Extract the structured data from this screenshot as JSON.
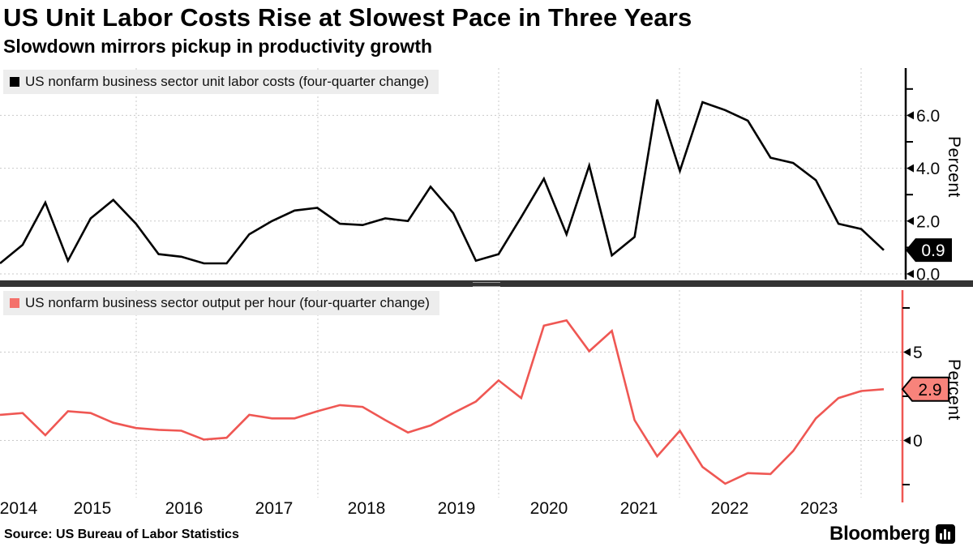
{
  "header": {
    "title": "US Unit Labor Costs Rise at Slowest Pace in Three Years",
    "subtitle": "Slowdown mirrors pickup in productivity growth"
  },
  "footer": {
    "source": "Source: US Bureau of Labor Statistics",
    "brand": "Bloomberg"
  },
  "x_axis": {
    "year_labels": [
      "2014",
      "2015",
      "2016",
      "2017",
      "2018",
      "2019",
      "2020",
      "2021",
      "2022",
      "2023"
    ]
  },
  "chart_data": [
    {
      "type": "line",
      "legend": "US nonfarm business sector unit labor costs (four-quarter change)",
      "ylabel": "Percent",
      "line_color": "#000000",
      "legend_marker_color": "#000000",
      "last_value_badge": "0.9",
      "badge_fill": "#000000",
      "badge_text_color": "#ffffff",
      "badge_border": "#000000",
      "ylim": [
        -0.4,
        7.8
      ],
      "y_major_ticks": [
        {
          "value": 0,
          "label": "0.0"
        },
        {
          "value": 2,
          "label": "2.0"
        },
        {
          "value": 4,
          "label": "4.0"
        },
        {
          "value": 6,
          "label": "6.0"
        }
      ],
      "y_minor_ticks": [
        1,
        3,
        5,
        7
      ],
      "x_span_years": [
        "2014",
        "2023"
      ],
      "frequency": "quarterly",
      "values": [
        0.4,
        1.1,
        2.7,
        0.5,
        2.1,
        2.8,
        1.9,
        0.75,
        0.65,
        0.4,
        0.4,
        1.5,
        2.0,
        2.4,
        2.5,
        1.9,
        1.85,
        2.1,
        2.0,
        3.3,
        2.3,
        0.5,
        0.75,
        2.15,
        3.6,
        1.5,
        4.1,
        0.7,
        1.4,
        6.6,
        3.9,
        6.5,
        6.2,
        5.8,
        4.4,
        4.2,
        3.55,
        1.9,
        1.7,
        0.9
      ]
    },
    {
      "type": "line",
      "legend": "US nonfarm business sector output per hour (four-quarter change)",
      "ylabel": "Percent",
      "line_color": "#ef5753",
      "legend_marker_color": "#f4716b",
      "last_value_badge": "2.9",
      "badge_fill": "#f8837b",
      "badge_text_color": "#000000",
      "badge_border": "#000000",
      "ylim": [
        -3.2,
        8.5
      ],
      "y_major_ticks": [
        {
          "value": 0,
          "label": "0"
        },
        {
          "value": 5,
          "label": "5"
        }
      ],
      "y_minor_ticks": [
        -2.5,
        2.5,
        7.5
      ],
      "x_span_years": [
        "2014",
        "2023"
      ],
      "frequency": "quarterly",
      "values": [
        1.45,
        1.55,
        0.3,
        1.65,
        1.55,
        1.0,
        0.7,
        0.6,
        0.55,
        0.05,
        0.15,
        1.45,
        1.25,
        1.25,
        1.65,
        2.0,
        1.9,
        1.15,
        0.45,
        0.85,
        1.55,
        2.2,
        3.4,
        2.4,
        6.5,
        6.8,
        5.05,
        6.2,
        1.15,
        -0.9,
        0.55,
        -1.5,
        -2.45,
        -1.85,
        -1.9,
        -0.6,
        1.25,
        2.4,
        2.8,
        2.9
      ]
    }
  ]
}
